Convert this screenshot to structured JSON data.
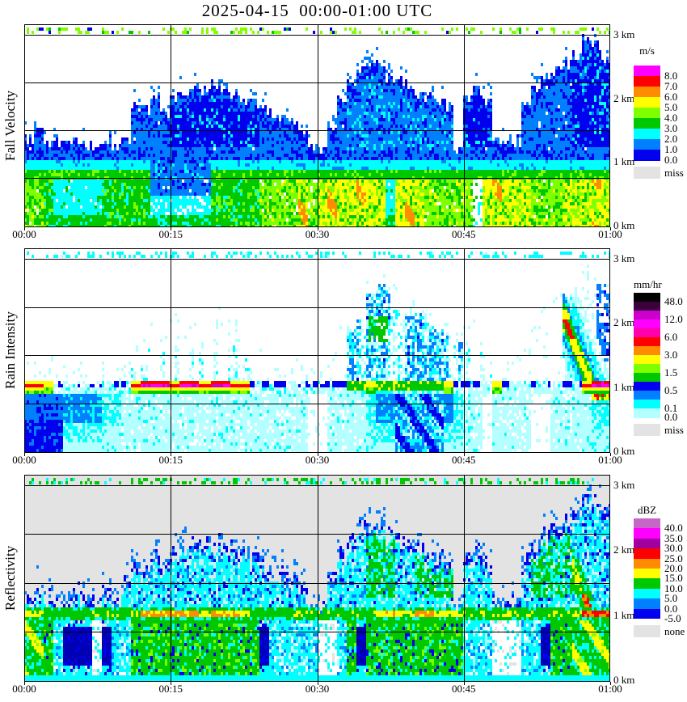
{
  "title": "2025-04-15  00:00-01:00 UTC",
  "colors": {
    "white": "#FFFFFF",
    "black": "#000000",
    "gray": "#E3E3E3",
    "pale": "#B4FFFF",
    "cyan": "#00FFFF",
    "dodger": "#0080FF",
    "blue": "#0000EE",
    "darkblue": "#0000B4",
    "green": "#00C800",
    "chartreuse": "#80FF00",
    "yellow": "#FFFF00",
    "orange": "#FF8C00",
    "red": "#FF0000",
    "magenta": "#FF00FF",
    "pink": "#FF00AA",
    "midmagenta": "#CC00CC",
    "darkpurple": "#3C003C",
    "darkmagenta": "#A000A0",
    "orchid": "#C666C6"
  },
  "chart_data": {
    "type": "heatmap",
    "x_axis": {
      "labels": [
        "00:00",
        "00:15",
        "00:30",
        "00:45",
        "01:00"
      ],
      "range_minutes": [
        0,
        60
      ]
    },
    "y_axis": {
      "labels": [
        "3 km",
        "2 km",
        "1 km",
        "0 km"
      ],
      "values_km": [
        3,
        2,
        1,
        0
      ],
      "range_km": [
        0,
        3.16
      ],
      "gridlines_km": [
        3,
        2.25,
        1.5,
        0.75
      ]
    },
    "panels": [
      {
        "ylabel": "Fall Velocity",
        "style": "velocity",
        "bg": "white",
        "seed": 1,
        "dot_density": 0.34,
        "dot_colors": [
          "chartreuse",
          "green",
          "blue"
        ],
        "legend": {
          "title": "m/s",
          "bands": [
            "magenta",
            "red",
            "orange",
            "yellow",
            "chartreuse",
            "green",
            "cyan",
            "dodger",
            "blue"
          ],
          "labels": [
            {
              "text": "8.0",
              "b": 1
            },
            {
              "text": "7.0",
              "b": 2
            },
            {
              "text": "6.0",
              "b": 3
            },
            {
              "text": "5.0",
              "b": 4
            },
            {
              "text": "4.0",
              "b": 5
            },
            {
              "text": "3.0",
              "b": 6
            },
            {
              "text": "2.0",
              "b": 7
            },
            {
              "text": "1.0",
              "b": 8
            },
            {
              "text": "0.0",
              "b": 9
            }
          ],
          "extra": {
            "label": "miss",
            "color": "gray"
          }
        },
        "field": {
          "tops": [
            1.35,
            1.45,
            1.3,
            1.25,
            1.3,
            1.4,
            1.3,
            1.25,
            1.35,
            1.3,
            1.45,
            1.85,
            1.75,
            1.95,
            1.85,
            2.05,
            2.15,
            2.2,
            2.15,
            2.2,
            2.15,
            2.1,
            2.0,
            1.9,
            1.8,
            1.7,
            1.75,
            1.65,
            1.4,
            1.2,
            1.12,
            1.6,
            2.0,
            2.25,
            2.4,
            2.5,
            2.45,
            2.35,
            2.25,
            2.15,
            2.1,
            2.0,
            1.9,
            1.85,
            1.15,
            2.0,
            2.05,
            1.9,
            1.35,
            1.25,
            1.3,
            1.85,
            2.15,
            2.3,
            2.45,
            2.55,
            2.7,
            2.95,
            2.8,
            2.6
          ],
          "band": "000000000000000000000000000000000000000000000000000000000000",
          "rain": "332111112222266666622222333353454454414543333304544433344 54",
          "rain_fix": "332111112222266666622222333353454454414543333304544433344454",
          "upper": "000000000000000111111111000000000222222222222111000000001111"
        }
      },
      {
        "ylabel": "Rain Intensity",
        "style": "rain",
        "bg": "white",
        "seed": 2,
        "dot_density": 0.3,
        "dot_colors": [
          "cyan",
          "cyan",
          "pale"
        ],
        "legend": {
          "title": "mm/hr",
          "bands": [
            "black",
            "darkpurple",
            "midmagenta",
            "magenta",
            "pink",
            "red",
            "orange",
            "yellow",
            "chartreuse",
            "green",
            "blue",
            "dodger",
            "cyan",
            "pale"
          ],
          "labels": [
            {
              "text": "48.0",
              "b": 1
            },
            {
              "text": "12.0",
              "b": 3
            },
            {
              "text": "6.0",
              "b": 5
            },
            {
              "text": "3.0",
              "b": 7
            },
            {
              "text": "1.5",
              "b": 9
            },
            {
              "text": "0.5",
              "b": 11
            },
            {
              "text": "0.1",
              "b": 13
            },
            {
              "text": "0.0",
              "b": 14
            }
          ],
          "extra": {
            "label": "miss",
            "color": "gray"
          }
        },
        "field": {
          "tops": [
            1.2,
            1.2,
            1.15,
            1.1,
            1.15,
            1.1,
            1.1,
            1.1,
            1.15,
            1.1,
            1.2,
            1.5,
            1.6,
            1.8,
            1.7,
            1.9,
            1.8,
            1.9,
            1.8,
            1.9,
            1.8,
            1.7,
            1.6,
            1.5,
            1.4,
            1.2,
            1.25,
            1.2,
            1.15,
            1.1,
            1.1,
            1.3,
            1.6,
            1.9,
            2.1,
            2.4,
            2.6,
            2.5,
            2.3,
            2.2,
            2.1,
            2.0,
            1.9,
            1.8,
            1.6,
            1.8,
            1.9,
            1.7,
            1.3,
            1.2,
            1.2,
            1.5,
            1.8,
            2.0,
            2.2,
            2.4,
            2.5,
            2.9,
            2.7,
            2.5
          ],
          "band": "443111111114555455455441111111111223222222231111311111111455",
          "rain": "444433332211111111111111111110011112334444432110111100111122",
          "upper": "000000000001111111111111100000000222222222222111000000033333"
        }
      },
      {
        "ylabel": "Reflectivity",
        "style": "reflectivity",
        "bg": "gray",
        "seed": 3,
        "dot_density": 0.34,
        "dot_colors": [
          "green",
          "cyan",
          "cyan"
        ],
        "legend": {
          "title": "dBZ",
          "bands": [
            "orchid",
            "magenta",
            "darkmagenta",
            "red",
            "orange",
            "yellow",
            "green",
            "cyan",
            "dodger",
            "blue"
          ],
          "labels": [
            {
              "text": "40.0",
              "b": 1
            },
            {
              "text": "35.0",
              "b": 2
            },
            {
              "text": "30.0",
              "b": 3
            },
            {
              "text": "25.0",
              "b": 4
            },
            {
              "text": "20.0",
              "b": 5
            },
            {
              "text": "15.0",
              "b": 6
            },
            {
              "text": "10.0",
              "b": 7
            },
            {
              "text": "5.0",
              "b": 8
            },
            {
              "text": "0.0",
              "b": 9
            },
            {
              "text": "-5.0",
              "b": 10
            }
          ],
          "extra": {
            "label": "none",
            "color": "gray"
          }
        },
        "field": {
          "tops": [
            1.35,
            1.45,
            1.3,
            1.25,
            1.3,
            1.4,
            1.3,
            1.25,
            1.35,
            1.3,
            1.45,
            1.85,
            1.75,
            1.95,
            1.85,
            2.05,
            2.15,
            2.2,
            2.15,
            2.2,
            2.15,
            2.1,
            2.0,
            1.9,
            1.8,
            1.7,
            1.75,
            1.65,
            1.4,
            1.2,
            1.12,
            1.6,
            2.0,
            2.25,
            2.4,
            2.5,
            2.45,
            2.35,
            2.25,
            2.15,
            2.1,
            2.0,
            1.9,
            1.85,
            1.15,
            2.0,
            2.05,
            1.9,
            1.35,
            1.25,
            1.3,
            1.85,
            2.15,
            2.3,
            2.45,
            2.55,
            2.7,
            2.95,
            2.8,
            2.6
          ],
          "band": "332222222223444444344432222222222222343344333222232222222355 5",
          "band_fix": "332222222223444444344432222222222222343344333222232222223555",
          "rain": "442133303112222222222222311111001232222222222111000113224444 4",
          "rain_fix": "442133303112222222222222311111001232222222222111000113224444",
          "upper": "000000000000000000000000000000000001110011110000000011112222"
        }
      }
    ]
  }
}
